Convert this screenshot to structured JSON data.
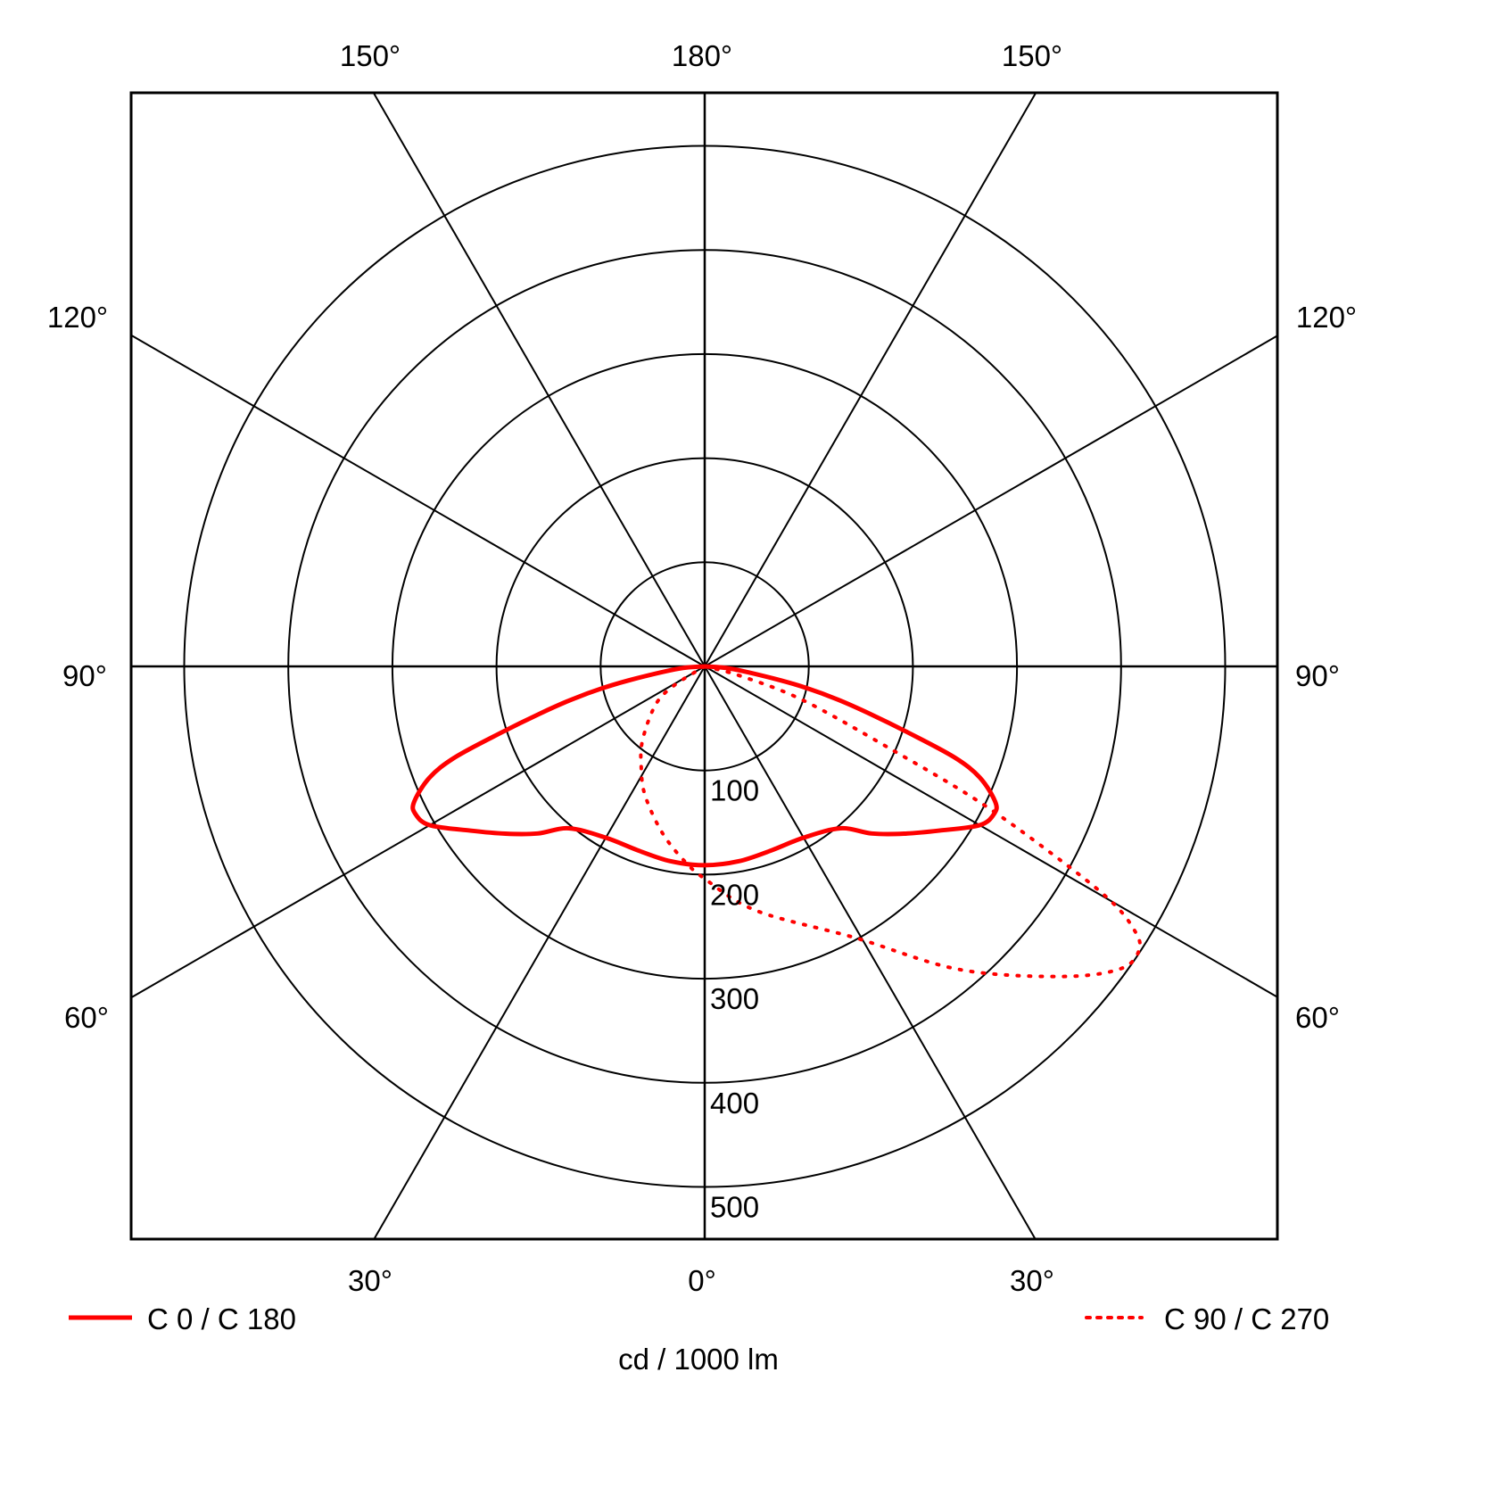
{
  "chart_data": {
    "type": "polar",
    "unit_label": "cd / 1000 lm",
    "radial_ticks": [
      100,
      200,
      300,
      400,
      500
    ],
    "radial_range": [
      0,
      550
    ],
    "angle_labels": {
      "top": [
        "150°",
        "180°",
        "150°"
      ],
      "left": [
        "120°",
        "90°",
        "60°"
      ],
      "right": [
        "120°",
        "90°",
        "60°"
      ],
      "bottom": [
        "30°",
        "0°",
        "30°"
      ]
    },
    "grid": true,
    "legend_placement": "bottom",
    "series": [
      {
        "name": "C 0 / C 180",
        "style": "solid",
        "color": "#ff0000",
        "angles": [
          -90,
          -85,
          -80,
          -78,
          -76,
          -74,
          -72,
          -70,
          -68,
          -65,
          -63,
          -60,
          -55,
          -50,
          -45,
          -40,
          -30,
          -20,
          -10,
          0,
          10,
          20,
          30,
          40,
          45,
          50,
          55,
          60,
          63,
          65,
          68,
          70,
          72,
          74,
          76,
          78,
          80,
          85,
          90
        ],
        "values": [
          0,
          25,
          68,
          100,
          132,
          165,
          205,
          255,
          285,
          308,
          312,
          305,
          275,
          250,
          227,
          203,
          190,
          188,
          190,
          191,
          190,
          188,
          190,
          203,
          227,
          250,
          275,
          305,
          312,
          308,
          285,
          255,
          205,
          165,
          132,
          100,
          68,
          25,
          0
        ]
      },
      {
        "name": "C 90 / C 270",
        "style": "dotted",
        "color": "#ff0000",
        "angles": [
          -66,
          -58,
          -52,
          -40,
          -32,
          -25,
          -15,
          -7,
          0,
          12,
          29,
          40,
          49,
          54,
          57,
          58.6,
          60,
          61.4,
          63.7,
          66,
          71,
          75,
          80
        ],
        "values": [
          0,
          35,
          60,
          93,
          115,
          136,
          163,
          185,
          204,
          240,
          298,
          380,
          454,
          494,
          498,
          482,
          450,
          390,
          296,
          197,
          100,
          36,
          0
        ]
      }
    ]
  }
}
